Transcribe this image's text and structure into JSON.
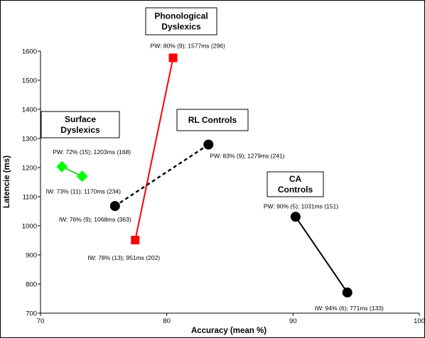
{
  "chart_data": {
    "type": "scatter",
    "xlabel": "Accuracy (mean %)",
    "ylabel": "Latencie (ms)",
    "xlim": [
      70,
      100
    ],
    "ylim": [
      700,
      1600
    ],
    "xticks": [
      70,
      80,
      90,
      100
    ],
    "yticks": [
      700,
      800,
      900,
      1000,
      1100,
      1200,
      1300,
      1400,
      1500,
      1600
    ],
    "grid": false,
    "series": [
      {
        "name": "Phonological Dyslexics",
        "marker": "square",
        "line": "solid",
        "color": "#ff0000",
        "marker_color": "#ff0000",
        "points": [
          {
            "x": 80.5,
            "y": 1577,
            "label": "PW: 80%  (9); 1577ms (296)"
          },
          {
            "x": 77.5,
            "y": 951,
            "label": "IW: 78%  (13); 951ms (202)"
          }
        ]
      },
      {
        "name": "Surface Dyslexics",
        "marker": "diamond",
        "line": "solid",
        "color": "#33cc33",
        "marker_color": "#00ff00",
        "points": [
          {
            "x": 71.7,
            "y": 1203,
            "label": "PW: 72%  (15); 1203ms (168)"
          },
          {
            "x": 73.3,
            "y": 1170,
            "label": "IW: 73%  (11); 1170ms (234)"
          }
        ]
      },
      {
        "name": "RL Controls",
        "marker": "circle",
        "line": "dashed",
        "color": "#000000",
        "marker_color": "#000000",
        "points": [
          {
            "x": 83.3,
            "y": 1279,
            "label": "PW: 83%  (9); 1279ms (241)"
          },
          {
            "x": 75.9,
            "y": 1068,
            "label": "IW: 76%  (9); 1068ms (363)"
          }
        ]
      },
      {
        "name": "CA Controls",
        "marker": "circle",
        "line": "solid",
        "color": "#000000",
        "marker_color": "#000000",
        "points": [
          {
            "x": 90.2,
            "y": 1031,
            "label": "PW: 90%  (5); 1031ms (151)"
          },
          {
            "x": 94.3,
            "y": 771,
            "label": "IW: 94%  (6); 771ms (133)"
          }
        ]
      }
    ],
    "group_labels": [
      {
        "lines": [
          "Phonological",
          "Dyslexics"
        ]
      },
      {
        "lines": [
          "Surface",
          "Dyslexics"
        ]
      },
      {
        "lines": [
          "RL Controls"
        ]
      },
      {
        "lines": [
          "CA",
          "Controls"
        ]
      }
    ]
  }
}
